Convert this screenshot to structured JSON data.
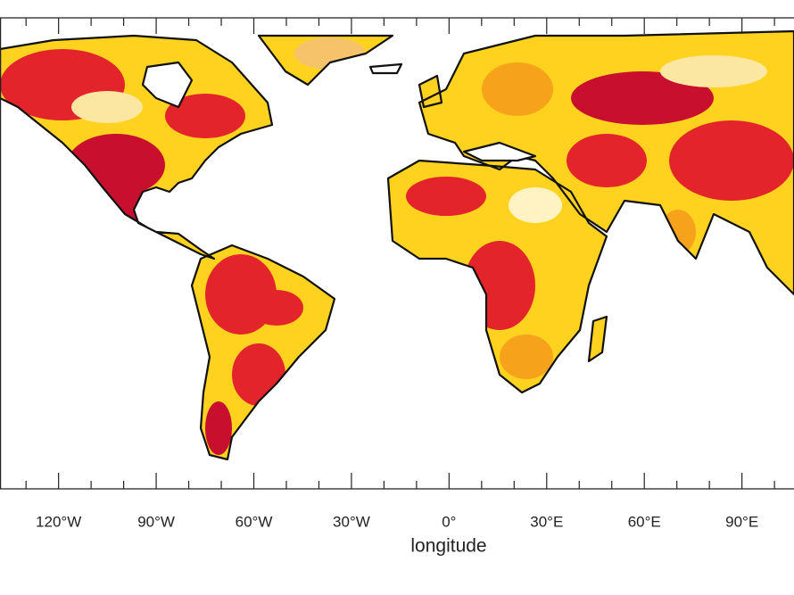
{
  "map": {
    "x_axis": {
      "label": "longitude",
      "xlim": [
        -138,
        106
      ],
      "ticks": [
        {
          "value": -120,
          "label": "120°W"
        },
        {
          "value": -90,
          "label": "90°W"
        },
        {
          "value": -60,
          "label": "60°W"
        },
        {
          "value": -30,
          "label": "30°W"
        },
        {
          "value": 0,
          "label": "0°"
        },
        {
          "value": 30,
          "label": "30°E"
        },
        {
          "value": 60,
          "label": "60°E"
        },
        {
          "value": 90,
          "label": "90°E"
        }
      ],
      "minor_ticks": [
        -130,
        -110,
        -100,
        -80,
        -70,
        -50,
        -40,
        -20,
        -10,
        10,
        20,
        40,
        50,
        70,
        80,
        100
      ]
    }
  }
}
